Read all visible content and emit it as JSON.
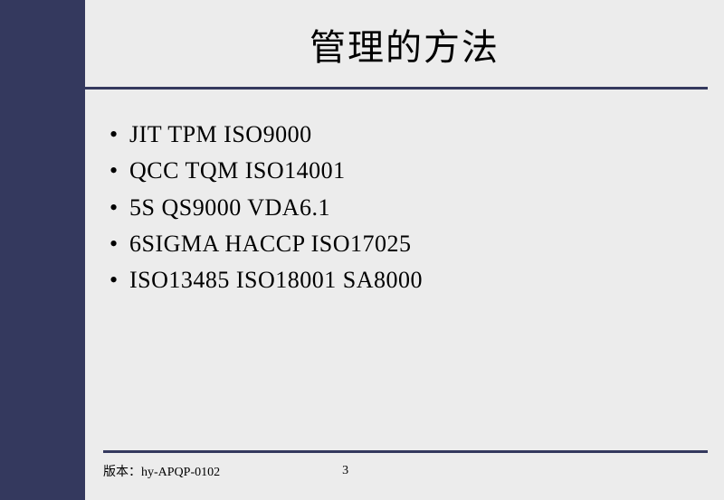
{
  "colors": {
    "sidebar": "#34395e",
    "background": "#ececec",
    "divider": "#34395e",
    "text": "#000000"
  },
  "slide": {
    "title": "管理的方法",
    "title_fontsize": 40,
    "bullets": [
      "JIT   TPM  ISO9000",
      "QCC    TQM   ISO14001",
      "5S     QS9000   VDA6.1",
      "6SIGMA    HACCP   ISO17025",
      "ISO13485   ISO18001   SA8000"
    ],
    "bullet_fontsize": 26
  },
  "footer": {
    "version_label": "版本：hy-APQP-0102",
    "page_number": "3",
    "fontsize": 14
  }
}
